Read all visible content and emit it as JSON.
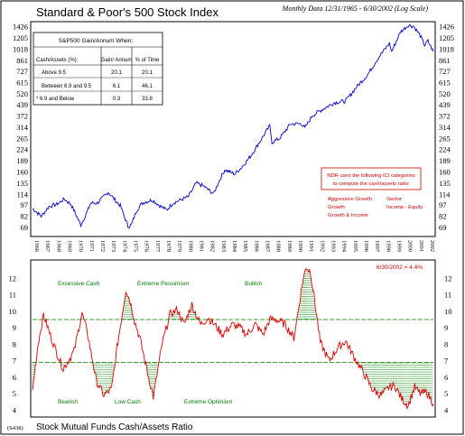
{
  "header": {
    "title": "Standard & Poor's 500 Stock Index",
    "subtitle": "Monthly Data 12/31/1965 - 6/30/2002 (Log Scale)"
  },
  "footer": {
    "code": "(S438)",
    "caption": "Stock Mutual Funds Cash/Assets Ratio"
  },
  "table": {
    "title": "S&P500 Gain/Annum When:",
    "headers": [
      "Cash/Assets (%):",
      "Gain/ Annum",
      "% of Time"
    ],
    "rows": [
      [
        "Above 9.5",
        "20.1",
        "20.1"
      ],
      [
        "Between 6.9 and 9.5",
        "6.1",
        "46.1"
      ],
      [
        "* 6.9 and Below",
        "0.3",
        "33.8"
      ]
    ]
  },
  "notes": {
    "box_line1": "NDR uses the following ICI categories",
    "box_line2": "to compute the cash/assets ratio:",
    "cat1": "Aggressive Growth",
    "cat2": "Sector",
    "cat3": "Growth",
    "cat4": "Income - Equity",
    "cat5": "Growth & Income",
    "latest": "6/30/2002 = 4.4%"
  },
  "annotations": {
    "excessive_cash": "Excessive Cash",
    "extreme_pessimism": "Extreme Pessimism",
    "bullish": "Bullish",
    "bearish": "Bearish",
    "low_cash": "Low Cash",
    "extreme_optimism": "Extreme Optimism"
  },
  "colors": {
    "price_line": "#0000cc",
    "ratio_line": "#dd0000",
    "threshold_line": "#008000",
    "annotation_text": "#008000",
    "note_text": "#cc0000"
  },
  "chart_data": [
    {
      "type": "line",
      "title": "Standard & Poor's 500 Stock Index",
      "scale": "log",
      "y_ticks": [
        69,
        82,
        97,
        114,
        135,
        160,
        189,
        224,
        265,
        314,
        372,
        439,
        520,
        615,
        727,
        861,
        1018,
        1205,
        1426
      ],
      "x_ticks": [
        "1966",
        "1967",
        "1968",
        "1969",
        "1970",
        "1971",
        "1972",
        "1973",
        "1974",
        "1975",
        "1976",
        "1977",
        "1978",
        "1979",
        "1980",
        "1981",
        "1982",
        "1983",
        "1984",
        "1985",
        "1986",
        "1987",
        "1988",
        "1989",
        "1990",
        "1991",
        "1992",
        "1993",
        "1994",
        "1995",
        "1996",
        "1997",
        "1998",
        "1999",
        "2000",
        "2001",
        "2002"
      ],
      "ylim": [
        62,
        1500
      ],
      "series": [
        {
          "x": [
            1966.0,
            1966.8,
            1967.5,
            1968.2,
            1968.9,
            1969.5,
            1970.4,
            1970.9,
            1971.3,
            1971.9,
            1972.5,
            1972.9,
            1973.5,
            1974.0,
            1974.7,
            1975.0,
            1975.5,
            1976.0,
            1976.9,
            1977.5,
            1978.2,
            1978.8,
            1979.5,
            1980.2,
            1980.9,
            1981.5,
            1982.5,
            1982.9,
            1983.5,
            1984.4,
            1985.0,
            1985.9,
            1986.5,
            1987.6,
            1987.8,
            1988.5,
            1989.5,
            1990.5,
            1990.8,
            1991.5,
            1992.5,
            1993.5,
            1994.5,
            1995.5,
            1996.5,
            1997.5,
            1998.5,
            1998.7,
            1999.5,
            2000.2,
            2000.7,
            2001.3,
            2001.7,
            2002.0,
            2002.5
          ],
          "y": [
            92,
            82,
            95,
            98,
            106,
            98,
            72,
            85,
            100,
            100,
            110,
            118,
            105,
            96,
            70,
            72,
            90,
            100,
            105,
            97,
            90,
            100,
            105,
            110,
            135,
            130,
            115,
            135,
            165,
            155,
            170,
            205,
            240,
            320,
            250,
            265,
            330,
            330,
            310,
            375,
            415,
            455,
            465,
            575,
            690,
            900,
            1110,
            980,
            1320,
            1460,
            1440,
            1250,
            1080,
            1150,
            980
          ]
        }
      ]
    },
    {
      "type": "line",
      "title": "Stock Mutual Funds Cash/Assets Ratio",
      "y_ticks": [
        4,
        5,
        6,
        7,
        8,
        9,
        10,
        11,
        12
      ],
      "ylim": [
        3.7,
        13
      ],
      "thresholds": [
        9.5,
        6.9
      ],
      "series": [
        {
          "x": [
            1966.0,
            1966.5,
            1967.0,
            1967.8,
            1968.8,
            1969.8,
            1970.5,
            1971.0,
            1971.8,
            1972.5,
            1973.2,
            1973.7,
            1974.5,
            1974.9,
            1975.3,
            1975.8,
            1976.5,
            1977.0,
            1977.8,
            1978.5,
            1979.2,
            1979.8,
            1980.5,
            1981.3,
            1982.0,
            1982.7,
            1983.3,
            1984.2,
            1984.9,
            1985.5,
            1986.3,
            1987.0,
            1987.6,
            1988.2,
            1989.0,
            1989.8,
            1990.3,
            1990.6,
            1990.9,
            1991.3,
            1991.7,
            1992.2,
            1993.0,
            1993.8,
            1994.5,
            1995.3,
            1996.2,
            1996.9,
            1997.7,
            1998.5,
            1999.0,
            1999.6,
            2000.2,
            2000.8,
            2001.3,
            2001.9,
            2002.5
          ],
          "y": [
            5.2,
            8.0,
            9.8,
            8.2,
            6.5,
            7.6,
            9.9,
            8.7,
            5.8,
            4.9,
            5.3,
            7.8,
            11.3,
            10.6,
            9.4,
            8.3,
            6.2,
            4.8,
            8.0,
            9.8,
            10.1,
            9.2,
            10.4,
            9.2,
            9.6,
            9.1,
            8.6,
            9.2,
            9.0,
            8.6,
            9.2,
            8.6,
            9.5,
            9.5,
            9.2,
            8.4,
            10.5,
            11.8,
            12.7,
            12.4,
            10.6,
            8.1,
            7.0,
            7.8,
            8.2,
            7.2,
            6.2,
            5.3,
            4.9,
            5.4,
            5.5,
            4.7,
            4.3,
            5.4,
            5.0,
            5.1,
            4.4
          ]
        }
      ]
    }
  ]
}
